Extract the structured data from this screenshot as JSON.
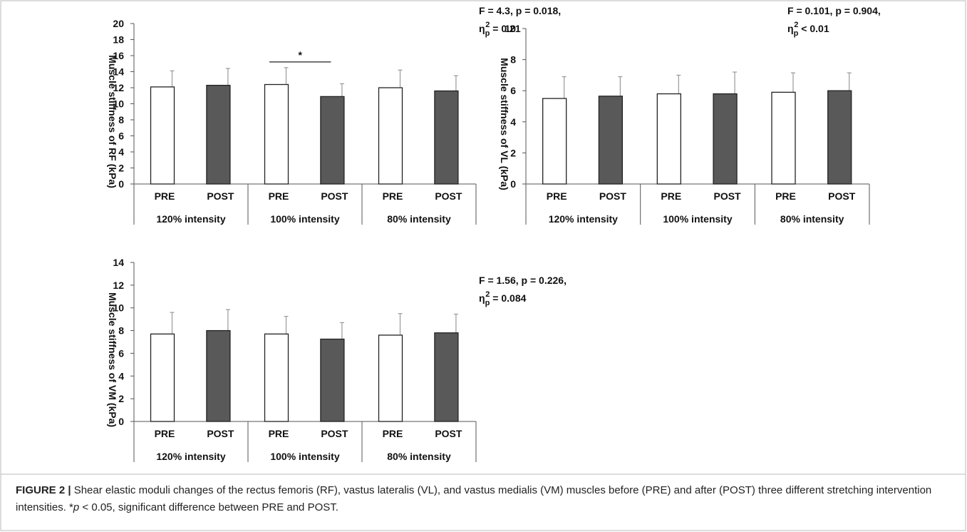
{
  "chart_data": [
    {
      "type": "bar",
      "ylabel": "Muscle stiffness of RF (kPa)",
      "categories": [
        "PRE",
        "POST",
        "PRE",
        "POST",
        "PRE",
        "POST"
      ],
      "groups": [
        "120% intensity",
        "100% intensity",
        "80% intensity"
      ],
      "values": [
        12.1,
        12.3,
        12.4,
        10.9,
        12.0,
        11.6
      ],
      "errors": [
        2.0,
        2.1,
        2.1,
        1.6,
        2.2,
        1.9
      ],
      "colors": [
        "#ffffff",
        "#595959",
        "#ffffff",
        "#595959",
        "#ffffff",
        "#595959"
      ],
      "ylim": [
        0,
        20
      ],
      "yticks": [
        0,
        2,
        4,
        6,
        8,
        10,
        12,
        14,
        16,
        18,
        20
      ],
      "stats": {
        "line1": "F = 4.3, p = 0.018,",
        "eta": "η",
        "sub": "p",
        "sup": "2",
        "rest": " = 0.21"
      },
      "significance": {
        "between": [
          2,
          3
        ],
        "label": "*"
      }
    },
    {
      "type": "bar",
      "ylabel": "Muscle stiffness of VL (kPa)",
      "categories": [
        "PRE",
        "POST",
        "PRE",
        "POST",
        "PRE",
        "POST"
      ],
      "groups": [
        "120% intensity",
        "100% intensity",
        "80% intensity"
      ],
      "values": [
        5.5,
        5.65,
        5.8,
        5.8,
        5.9,
        6.0
      ],
      "errors": [
        1.4,
        1.25,
        1.2,
        1.4,
        1.25,
        1.15
      ],
      "colors": [
        "#ffffff",
        "#595959",
        "#ffffff",
        "#595959",
        "#ffffff",
        "#595959"
      ],
      "ylim": [
        0,
        10
      ],
      "yticks": [
        0,
        2,
        4,
        6,
        8,
        10
      ],
      "stats": {
        "line1": "F = 0.101, p = 0.904,",
        "eta": "η",
        "sub": "p",
        "sup": "2",
        "rest": " < 0.01"
      }
    },
    {
      "type": "bar",
      "ylabel": "Muscle stiffness of VM (kPa)",
      "categories": [
        "PRE",
        "POST",
        "PRE",
        "POST",
        "PRE",
        "POST"
      ],
      "groups": [
        "120% intensity",
        "100% intensity",
        "80% intensity"
      ],
      "values": [
        7.7,
        8.0,
        7.7,
        7.25,
        7.6,
        7.8
      ],
      "errors": [
        1.9,
        1.85,
        1.55,
        1.45,
        1.9,
        1.65
      ],
      "colors": [
        "#ffffff",
        "#595959",
        "#ffffff",
        "#595959",
        "#ffffff",
        "#595959"
      ],
      "ylim": [
        0,
        14
      ],
      "yticks": [
        0,
        2,
        4,
        6,
        8,
        10,
        12,
        14
      ],
      "stats": {
        "line1": "F = 1.56, p = 0.226,",
        "eta": "η",
        "sub": "p",
        "sup": "2",
        "rest": " = 0.084"
      }
    }
  ],
  "caption": {
    "label": "FIGURE 2 |",
    "text1": " Shear elastic moduli changes of the rectus femoris (RF), vastus lateralis (VL), and vastus medialis (VM) muscles before (PRE) and after (POST) three different stretching intervention intensities. *",
    "italic": "p",
    "text2": " < 0.05, significant difference between PRE and POST."
  }
}
